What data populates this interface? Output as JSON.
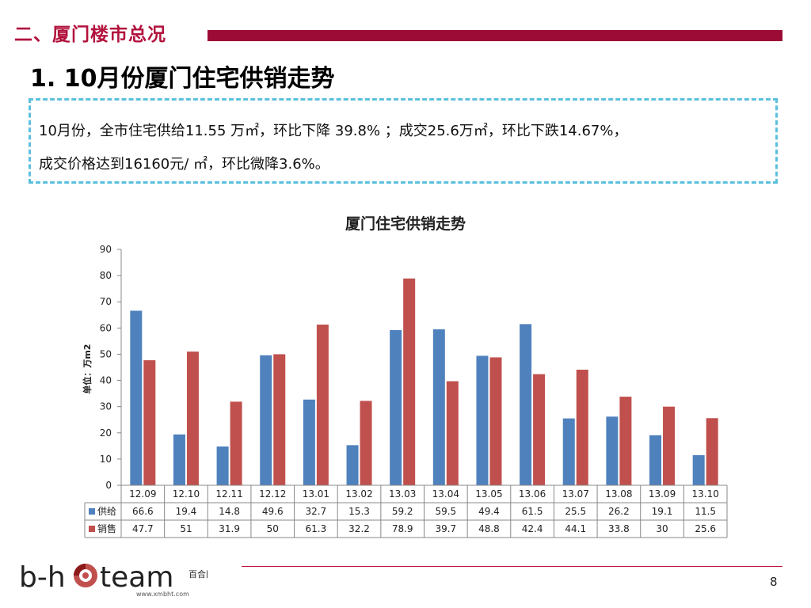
{
  "section": {
    "title": "二、厦门楼市总况"
  },
  "page_title": "1. 10月份厦门住宅供销走势",
  "summary": {
    "line1": "10月份，全市住宅供给11.55  万㎡，环比下降 39.8% ；成交25.6万㎡，环比下跌14.67%，",
    "line2": "成交价格达到16160元/ ㎡，环比微降3.6%。"
  },
  "chart_data": {
    "type": "bar",
    "title": "厦门住宅供销走势",
    "ylabel": "单位：万m2",
    "xlabel": "",
    "ylim": [
      0,
      90
    ],
    "yticks": [
      0,
      10,
      20,
      30,
      40,
      50,
      60,
      70,
      80,
      90
    ],
    "categories": [
      "12.09",
      "12.10",
      "12.11",
      "12.12",
      "13.01",
      "13.02",
      "13.03",
      "13.04",
      "13.05",
      "13.06",
      "13.07",
      "13.08",
      "13.09",
      "13.10"
    ],
    "series": [
      {
        "name": "供给",
        "color": "#4f81bd",
        "values": [
          66.6,
          19.4,
          14.8,
          49.6,
          32.7,
          15.3,
          59.2,
          59.5,
          49.4,
          61.5,
          25.5,
          26.2,
          19.1,
          11.5
        ]
      },
      {
        "name": "销售",
        "color": "#c0504d",
        "values": [
          47.7,
          51,
          31.9,
          50,
          61.3,
          32.2,
          78.9,
          39.7,
          48.8,
          42.4,
          44.1,
          33.8,
          30,
          25.6
        ]
      }
    ],
    "data_table": true,
    "grid": false
  },
  "footer": {
    "logo_text": "b-hteam",
    "logo_cn": "百合田",
    "logo_url": "www.xmbht.com",
    "page_number": "8"
  }
}
